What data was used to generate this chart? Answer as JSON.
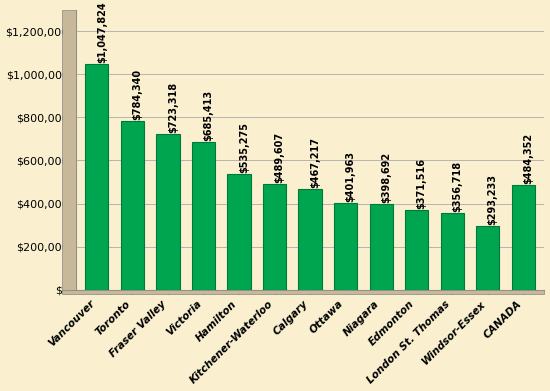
{
  "categories": [
    "Vancouver",
    "Toronto",
    "Fraser Valley",
    "Victoria",
    "Hamilton",
    "Kitchener-Waterloo",
    "Calgary",
    "Ottawa",
    "Niagara",
    "Edmonton",
    "London St. Thomas",
    "Windsor-Essex",
    "CANADA"
  ],
  "values": [
    1047824,
    784340,
    723318,
    685413,
    535275,
    489607,
    467217,
    401963,
    398692,
    371516,
    356718,
    293233,
    484352
  ],
  "bar_color": "#00A550",
  "bar_edge_color": "#007A3A",
  "background_color": "#FAF0D0",
  "plot_bg_color": "#FAF0D0",
  "sidebar_color": "#C8B89A",
  "grid_color": "#AAAAAA",
  "text_color": "#000000",
  "ylim": [
    0,
    1300000
  ],
  "yticks": [
    0,
    200000,
    400000,
    600000,
    800000,
    1000000,
    1200000
  ],
  "label_fontsize": 7.5,
  "tick_fontsize": 8,
  "value_fontsize": 7.0,
  "figsize": [
    5.5,
    3.91
  ],
  "dpi": 100
}
